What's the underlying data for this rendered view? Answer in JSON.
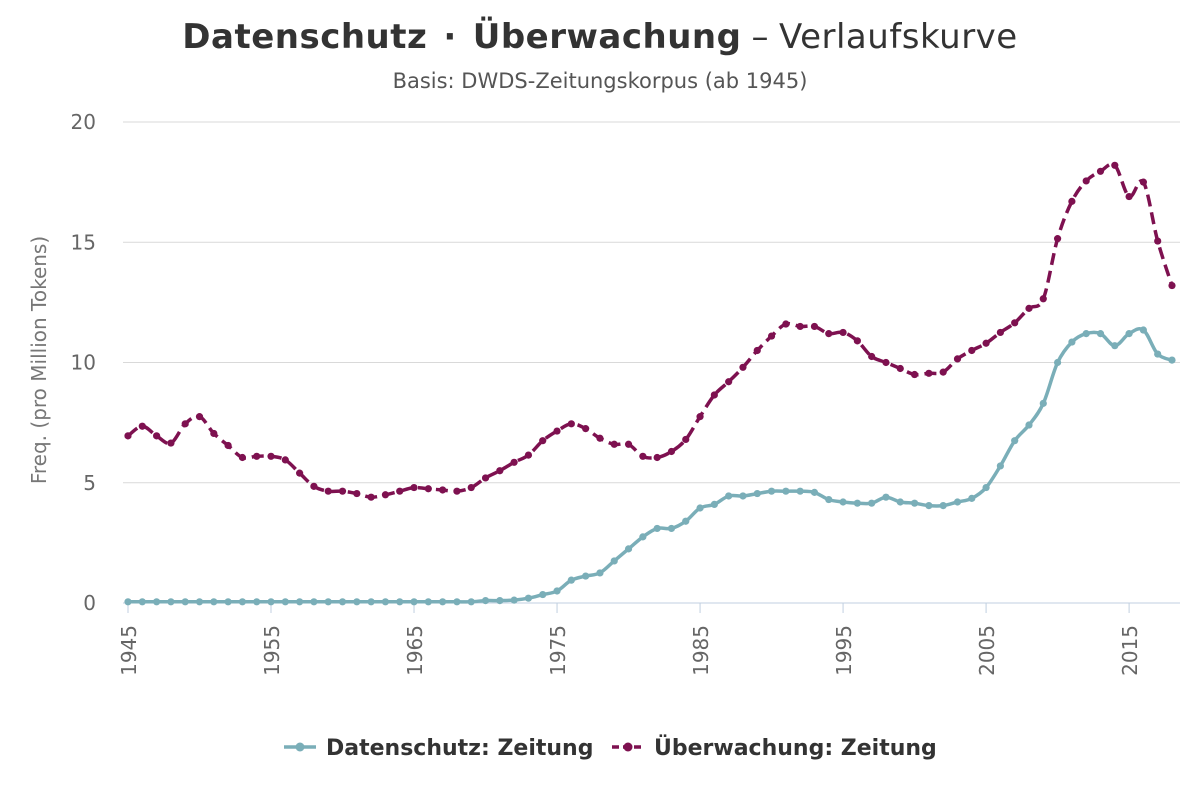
{
  "chart_data": {
    "type": "line",
    "title": {
      "part1": "Datenschutz",
      "separator": "·",
      "part2": "Überwachung",
      "dash": "–",
      "part3": "Verlaufskurve"
    },
    "subtitle": "Basis: DWDS-Zeitungskorpus (ab 1945)",
    "xlabel": "",
    "ylabel": "Freq. (pro Million Tokens)",
    "xlim": [
      1945,
      2018
    ],
    "ylim": [
      0,
      20
    ],
    "x_ticks": [
      1945,
      1955,
      1965,
      1975,
      1985,
      1995,
      2005,
      2015
    ],
    "y_ticks": [
      0,
      5,
      10,
      15,
      20
    ],
    "grid": "horizontal",
    "legend_position": "bottom",
    "x": [
      1945,
      1946,
      1947,
      1948,
      1949,
      1950,
      1951,
      1952,
      1953,
      1954,
      1955,
      1956,
      1957,
      1958,
      1959,
      1960,
      1961,
      1962,
      1963,
      1964,
      1965,
      1966,
      1967,
      1968,
      1969,
      1970,
      1971,
      1972,
      1973,
      1974,
      1975,
      1976,
      1977,
      1978,
      1979,
      1980,
      1981,
      1982,
      1983,
      1984,
      1985,
      1986,
      1987,
      1988,
      1989,
      1990,
      1991,
      1992,
      1993,
      1994,
      1995,
      1996,
      1997,
      1998,
      1999,
      2000,
      2001,
      2002,
      2003,
      2004,
      2005,
      2006,
      2007,
      2008,
      2009,
      2010,
      2011,
      2012,
      2013,
      2014,
      2015,
      2016,
      2017,
      2018
    ],
    "series": [
      {
        "name": "Datenschutz: Zeitung",
        "color": "#7aaeb8",
        "dashed": false,
        "values": [
          0.05,
          0.05,
          0.05,
          0.05,
          0.05,
          0.05,
          0.05,
          0.05,
          0.05,
          0.05,
          0.05,
          0.05,
          0.05,
          0.05,
          0.05,
          0.05,
          0.05,
          0.05,
          0.05,
          0.05,
          0.05,
          0.05,
          0.05,
          0.05,
          0.05,
          0.1,
          0.1,
          0.12,
          0.2,
          0.35,
          0.5,
          0.95,
          1.12,
          1.25,
          1.75,
          2.25,
          2.75,
          3.1,
          3.1,
          3.4,
          3.95,
          4.1,
          4.45,
          4.45,
          4.55,
          4.65,
          4.65,
          4.65,
          4.6,
          4.3,
          4.2,
          4.15,
          4.15,
          4.4,
          4.2,
          4.15,
          4.05,
          4.05,
          4.2,
          4.35,
          4.8,
          5.7,
          6.75,
          7.4,
          8.3,
          10.0,
          10.85,
          11.2,
          11.2,
          10.7,
          11.2,
          11.35,
          10.35,
          10.1
        ]
      },
      {
        "name": "Überwachung: Zeitung",
        "color": "#7e1150",
        "dashed": true,
        "values": [
          6.95,
          7.35,
          6.95,
          6.65,
          7.45,
          7.75,
          7.05,
          6.55,
          6.05,
          6.1,
          6.1,
          5.95,
          5.4,
          4.85,
          4.65,
          4.65,
          4.55,
          4.4,
          4.5,
          4.65,
          4.8,
          4.75,
          4.7,
          4.65,
          4.8,
          5.2,
          5.5,
          5.85,
          6.15,
          6.75,
          7.15,
          7.45,
          7.25,
          6.85,
          6.6,
          6.6,
          6.1,
          6.05,
          6.3,
          6.8,
          7.75,
          8.65,
          9.2,
          9.8,
          10.5,
          11.1,
          11.6,
          11.5,
          11.5,
          11.2,
          11.25,
          10.9,
          10.25,
          10.0,
          9.75,
          9.5,
          9.55,
          9.6,
          10.15,
          10.5,
          10.8,
          11.25,
          11.65,
          12.25,
          12.65,
          15.15,
          16.7,
          17.55,
          17.95,
          18.2,
          16.9,
          17.5,
          15.05,
          13.2
        ]
      }
    ]
  }
}
